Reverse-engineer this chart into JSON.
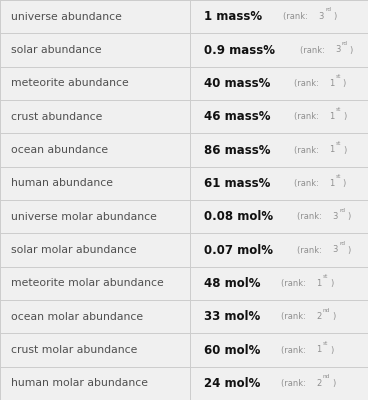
{
  "rows": [
    {
      "label": "universe abundance",
      "value": "1",
      "unit": "mass%",
      "rank_num": "3",
      "rank_sup": "rd"
    },
    {
      "label": "solar abundance",
      "value": "0.9",
      "unit": "mass%",
      "rank_num": "3",
      "rank_sup": "rd"
    },
    {
      "label": "meteorite abundance",
      "value": "40",
      "unit": "mass%",
      "rank_num": "1",
      "rank_sup": "st"
    },
    {
      "label": "crust abundance",
      "value": "46",
      "unit": "mass%",
      "rank_num": "1",
      "rank_sup": "st"
    },
    {
      "label": "ocean abundance",
      "value": "86",
      "unit": "mass%",
      "rank_num": "1",
      "rank_sup": "st"
    },
    {
      "label": "human abundance",
      "value": "61",
      "unit": "mass%",
      "rank_num": "1",
      "rank_sup": "st"
    },
    {
      "label": "universe molar abundance",
      "value": "0.08",
      "unit": "mol%",
      "rank_num": "3",
      "rank_sup": "rd"
    },
    {
      "label": "solar molar abundance",
      "value": "0.07",
      "unit": "mol%",
      "rank_num": "3",
      "rank_sup": "rd"
    },
    {
      "label": "meteorite molar abundance",
      "value": "48",
      "unit": "mol%",
      "rank_num": "1",
      "rank_sup": "st"
    },
    {
      "label": "ocean molar abundance",
      "value": "33",
      "unit": "mol%",
      "rank_num": "2",
      "rank_sup": "nd"
    },
    {
      "label": "crust molar abundance",
      "value": "60",
      "unit": "mol%",
      "rank_num": "1",
      "rank_sup": "st"
    },
    {
      "label": "human molar abundance",
      "value": "24",
      "unit": "mol%",
      "rank_num": "2",
      "rank_sup": "nd"
    }
  ],
  "bg_color": "#f0f0f0",
  "line_color": "#cccccc",
  "label_color": "#505050",
  "value_color": "#111111",
  "rank_color": "#909090",
  "col_split": 0.515,
  "figsize": [
    3.68,
    4.0
  ],
  "dpi": 100
}
